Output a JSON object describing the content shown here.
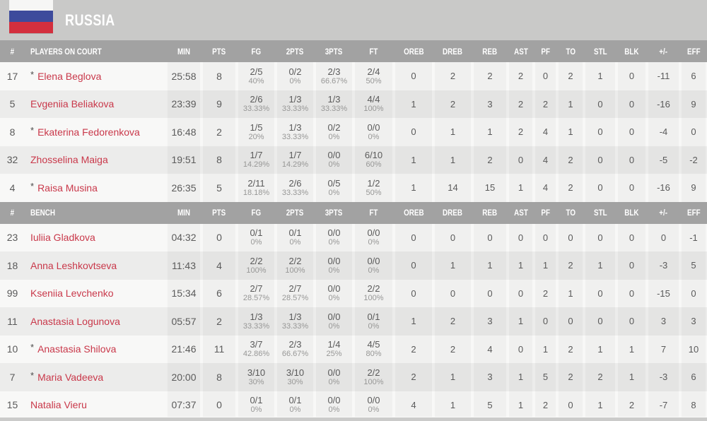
{
  "team": {
    "name": "RUSSIA",
    "flag_colors": {
      "top": "#f6f6f5",
      "middle": "#3d4b9c",
      "bottom": "#d32f3e"
    }
  },
  "columns": [
    "#",
    "PLAYERS ON COURT",
    "MIN",
    "PTS",
    "FG",
    "2PTS",
    "3PTS",
    "FT",
    "OREB",
    "DREB",
    "REB",
    "AST",
    "PF",
    "TO",
    "STL",
    "BLK",
    "+/-",
    "EFF"
  ],
  "legend": {
    "starter_mark": "*"
  },
  "colors": {
    "header_bg": "#a2a2a2",
    "team_bg": "#c9c9c8",
    "player_name": "#c9384a"
  },
  "sections": [
    {
      "label": "PLAYERS ON COURT",
      "rows": [
        {
          "num": "17",
          "starter": true,
          "name": "Elena Beglova",
          "min": "25:58",
          "pts": "8",
          "fg": [
            "2/5",
            "40%"
          ],
          "p2": [
            "0/2",
            "0%"
          ],
          "p3": [
            "2/3",
            "66.67%"
          ],
          "ft": [
            "2/4",
            "50%"
          ],
          "oreb": "0",
          "dreb": "2",
          "reb": "2",
          "ast": "2",
          "pf": "0",
          "to": "2",
          "stl": "1",
          "blk": "0",
          "pm": "-11",
          "eff": "6"
        },
        {
          "num": "5",
          "starter": false,
          "name": "Evgeniia Beliakova",
          "min": "23:39",
          "pts": "9",
          "fg": [
            "2/6",
            "33.33%"
          ],
          "p2": [
            "1/3",
            "33.33%"
          ],
          "p3": [
            "1/3",
            "33.33%"
          ],
          "ft": [
            "4/4",
            "100%"
          ],
          "oreb": "1",
          "dreb": "2",
          "reb": "3",
          "ast": "2",
          "pf": "2",
          "to": "1",
          "stl": "0",
          "blk": "0",
          "pm": "-16",
          "eff": "9"
        },
        {
          "num": "8",
          "starter": true,
          "name": "Ekaterina Fedorenkova",
          "min": "16:48",
          "pts": "2",
          "fg": [
            "1/5",
            "20%"
          ],
          "p2": [
            "1/3",
            "33.33%"
          ],
          "p3": [
            "0/2",
            "0%"
          ],
          "ft": [
            "0/0",
            "0%"
          ],
          "oreb": "0",
          "dreb": "1",
          "reb": "1",
          "ast": "2",
          "pf": "4",
          "to": "1",
          "stl": "0",
          "blk": "0",
          "pm": "-4",
          "eff": "0"
        },
        {
          "num": "32",
          "starter": false,
          "name": "Zhosselina Maiga",
          "min": "19:51",
          "pts": "8",
          "fg": [
            "1/7",
            "14.29%"
          ],
          "p2": [
            "1/7",
            "14.29%"
          ],
          "p3": [
            "0/0",
            "0%"
          ],
          "ft": [
            "6/10",
            "60%"
          ],
          "oreb": "1",
          "dreb": "1",
          "reb": "2",
          "ast": "0",
          "pf": "4",
          "to": "2",
          "stl": "0",
          "blk": "0",
          "pm": "-5",
          "eff": "-2"
        },
        {
          "num": "4",
          "starter": true,
          "name": "Raisa Musina",
          "min": "26:35",
          "pts": "5",
          "fg": [
            "2/11",
            "18.18%"
          ],
          "p2": [
            "2/6",
            "33.33%"
          ],
          "p3": [
            "0/5",
            "0%"
          ],
          "ft": [
            "1/2",
            "50%"
          ],
          "oreb": "1",
          "dreb": "14",
          "reb": "15",
          "ast": "1",
          "pf": "4",
          "to": "2",
          "stl": "0",
          "blk": "0",
          "pm": "-16",
          "eff": "9"
        }
      ]
    },
    {
      "label": "BENCH",
      "rows": [
        {
          "num": "23",
          "starter": false,
          "name": "Iuliia Gladkova",
          "min": "04:32",
          "pts": "0",
          "fg": [
            "0/1",
            "0%"
          ],
          "p2": [
            "0/1",
            "0%"
          ],
          "p3": [
            "0/0",
            "0%"
          ],
          "ft": [
            "0/0",
            "0%"
          ],
          "oreb": "0",
          "dreb": "0",
          "reb": "0",
          "ast": "0",
          "pf": "0",
          "to": "0",
          "stl": "0",
          "blk": "0",
          "pm": "0",
          "eff": "-1"
        },
        {
          "num": "18",
          "starter": false,
          "name": "Anna Leshkovtseva",
          "min": "11:43",
          "pts": "4",
          "fg": [
            "2/2",
            "100%"
          ],
          "p2": [
            "2/2",
            "100%"
          ],
          "p3": [
            "0/0",
            "0%"
          ],
          "ft": [
            "0/0",
            "0%"
          ],
          "oreb": "0",
          "dreb": "1",
          "reb": "1",
          "ast": "1",
          "pf": "1",
          "to": "2",
          "stl": "1",
          "blk": "0",
          "pm": "-3",
          "eff": "5"
        },
        {
          "num": "99",
          "starter": false,
          "name": "Kseniia Levchenko",
          "min": "15:34",
          "pts": "6",
          "fg": [
            "2/7",
            "28.57%"
          ],
          "p2": [
            "2/7",
            "28.57%"
          ],
          "p3": [
            "0/0",
            "0%"
          ],
          "ft": [
            "2/2",
            "100%"
          ],
          "oreb": "0",
          "dreb": "0",
          "reb": "0",
          "ast": "0",
          "pf": "2",
          "to": "1",
          "stl": "0",
          "blk": "0",
          "pm": "-15",
          "eff": "0"
        },
        {
          "num": "11",
          "starter": false,
          "name": "Anastasia Logunova",
          "min": "05:57",
          "pts": "2",
          "fg": [
            "1/3",
            "33.33%"
          ],
          "p2": [
            "1/3",
            "33.33%"
          ],
          "p3": [
            "0/0",
            "0%"
          ],
          "ft": [
            "0/1",
            "0%"
          ],
          "oreb": "1",
          "dreb": "2",
          "reb": "3",
          "ast": "1",
          "pf": "0",
          "to": "0",
          "stl": "0",
          "blk": "0",
          "pm": "3",
          "eff": "3"
        },
        {
          "num": "10",
          "starter": true,
          "name": "Anastasia Shilova",
          "min": "21:46",
          "pts": "11",
          "fg": [
            "3/7",
            "42.86%"
          ],
          "p2": [
            "2/3",
            "66.67%"
          ],
          "p3": [
            "1/4",
            "25%"
          ],
          "ft": [
            "4/5",
            "80%"
          ],
          "oreb": "2",
          "dreb": "2",
          "reb": "4",
          "ast": "0",
          "pf": "1",
          "to": "2",
          "stl": "1",
          "blk": "1",
          "pm": "7",
          "eff": "10"
        },
        {
          "num": "7",
          "starter": true,
          "name": "Maria Vadeeva",
          "min": "20:00",
          "pts": "8",
          "fg": [
            "3/10",
            "30%"
          ],
          "p2": [
            "3/10",
            "30%"
          ],
          "p3": [
            "0/0",
            "0%"
          ],
          "ft": [
            "2/2",
            "100%"
          ],
          "oreb": "2",
          "dreb": "1",
          "reb": "3",
          "ast": "1",
          "pf": "5",
          "to": "2",
          "stl": "2",
          "blk": "1",
          "pm": "-3",
          "eff": "6"
        },
        {
          "num": "15",
          "starter": false,
          "name": "Natalia Vieru",
          "min": "07:37",
          "pts": "0",
          "fg": [
            "0/1",
            "0%"
          ],
          "p2": [
            "0/1",
            "0%"
          ],
          "p3": [
            "0/0",
            "0%"
          ],
          "ft": [
            "0/0",
            "0%"
          ],
          "oreb": "4",
          "dreb": "1",
          "reb": "5",
          "ast": "1",
          "pf": "2",
          "to": "0",
          "stl": "1",
          "blk": "2",
          "pm": "-7",
          "eff": "8"
        }
      ]
    }
  ]
}
